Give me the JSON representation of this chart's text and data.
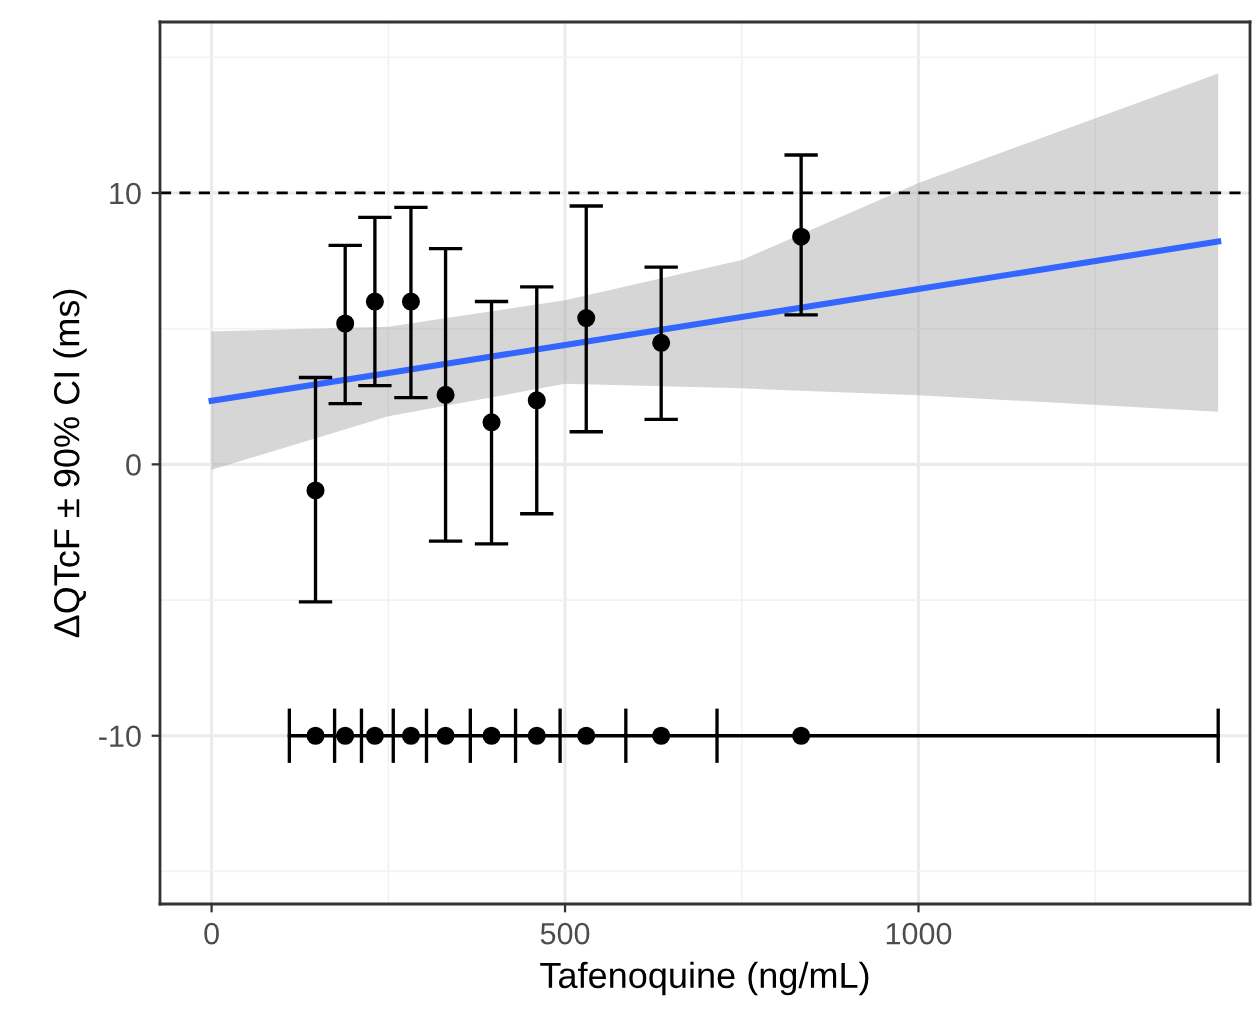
{
  "chart_data": {
    "type": "scatter",
    "xlabel": "Tafenoquine (ng/mL)",
    "ylabel": "ΔQTcF ± 90% CI (ms)",
    "xlim": [
      -73,
      1469
    ],
    "ylim": [
      -16.2,
      16.3
    ],
    "xticks": [
      0,
      500,
      1000
    ],
    "yticks": [
      -10,
      0,
      10
    ],
    "grid": true,
    "ref_lines": [
      {
        "axis": "y",
        "value": 10,
        "color": "#000000",
        "line_style": "dashed"
      }
    ],
    "series": [
      {
        "type": "line",
        "color": "#3366ff",
        "x": [
          0,
          250,
          500,
          750,
          1000,
          1424
        ],
        "values": [
          2.34,
          3.37,
          4.4,
          5.43,
          6.46,
          8.21
        ],
        "lower": [
          -0.2,
          1.77,
          2.97,
          2.8,
          2.55,
          1.94
        ],
        "upper": [
          4.9,
          5.07,
          6.05,
          7.53,
          10.37,
          14.4
        ],
        "marker": "none"
      },
      {
        "color": "#000000",
        "marker": "circle",
        "x": [
          147,
          189,
          231,
          282,
          331,
          396,
          460,
          530,
          636,
          834
        ],
        "values": [
          -0.96,
          5.19,
          6.0,
          6.0,
          2.56,
          1.55,
          2.36,
          5.39,
          4.48,
          8.39
        ],
        "errors": [
          [
            -5.07,
            3.2
          ],
          [
            2.24,
            8.07
          ],
          [
            2.9,
            9.1
          ],
          [
            2.46,
            9.47
          ],
          [
            -2.83,
            7.95
          ],
          [
            -2.93,
            6.0
          ],
          [
            -1.82,
            6.54
          ],
          [
            1.2,
            9.52
          ],
          [
            1.66,
            7.27
          ],
          [
            5.51,
            11.4
          ]
        ]
      },
      {
        "type": "line",
        "color": "#000000",
        "marker": "none",
        "x": [
          110,
          174,
          212,
          257,
          304,
          366,
          430,
          493,
          586,
          715,
          1424
        ],
        "values": [
          -10,
          -10,
          -10,
          -10,
          -10,
          -10,
          -10,
          -10,
          -10,
          -10,
          -10
        ],
        "errors": [
          1,
          1,
          1,
          1,
          1,
          1,
          1,
          1,
          1,
          1,
          1
        ]
      },
      {
        "color": "#000000",
        "marker": "circle",
        "x": [
          147,
          189,
          231,
          282,
          331,
          396,
          460,
          530,
          636,
          834
        ],
        "values": [
          -10,
          -10,
          -10,
          -10,
          -10,
          -10,
          -10,
          -10,
          -10,
          -10
        ]
      }
    ]
  }
}
